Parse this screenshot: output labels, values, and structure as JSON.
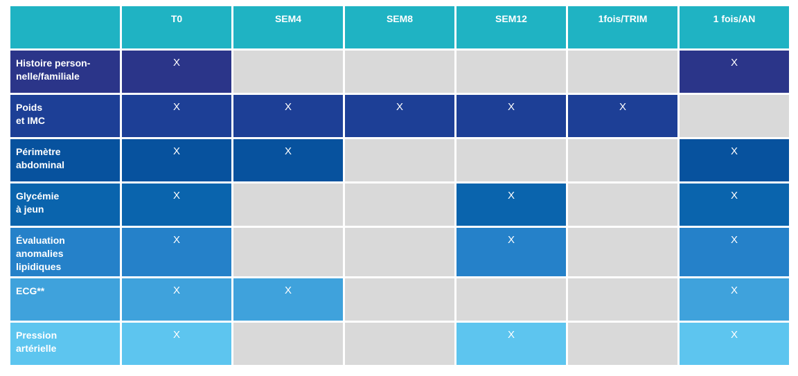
{
  "table": {
    "columns": [
      "T0",
      "SEM4",
      "SEM8",
      "SEM12",
      "1fois/TRIM",
      "1 fois/AN"
    ],
    "mark": "X",
    "header_color": "#1fb3c3",
    "empty_color": "#d9d9d9",
    "rows": [
      {
        "label": "Histoire person-\nnelle/familiale",
        "color": "#2b3589",
        "marks": [
          true,
          false,
          false,
          false,
          false,
          true
        ]
      },
      {
        "label": "Poids\net IMC",
        "color": "#1d3f96",
        "marks": [
          true,
          true,
          true,
          true,
          true,
          false
        ]
      },
      {
        "label": "Périmètre\nabdominal",
        "color": "#07529e",
        "marks": [
          true,
          true,
          false,
          false,
          false,
          true
        ]
      },
      {
        "label": "Glycémie\nà jeun",
        "color": "#0a64ad",
        "marks": [
          true,
          false,
          false,
          true,
          false,
          true
        ]
      },
      {
        "label": "Évaluation\nanomalies\nlipidiques",
        "color": "#2581c9",
        "marks": [
          true,
          false,
          false,
          true,
          false,
          true
        ]
      },
      {
        "label": "ECG**",
        "color": "#3fa2dc",
        "marks": [
          true,
          true,
          false,
          false,
          false,
          true
        ]
      },
      {
        "label": "Pression\nartérielle",
        "color": "#5dc5ef",
        "marks": [
          true,
          false,
          false,
          true,
          false,
          true
        ]
      }
    ]
  }
}
